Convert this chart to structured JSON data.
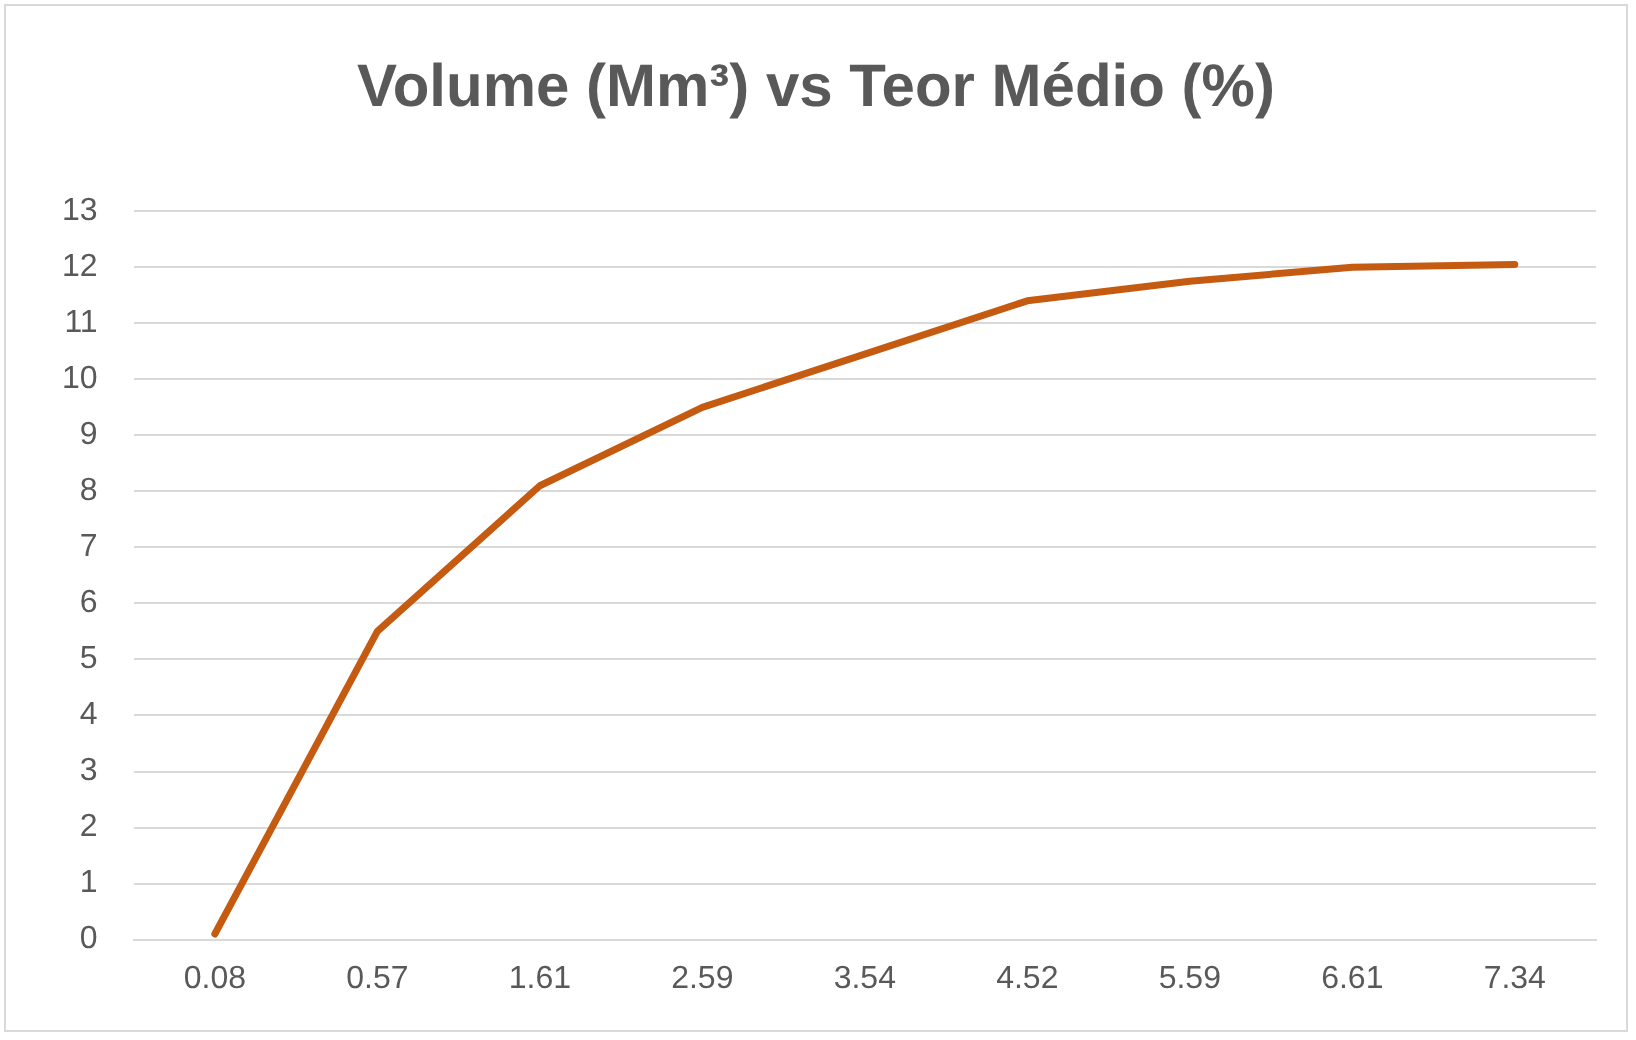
{
  "chart_data": {
    "type": "line",
    "title": "Volume (Mm³) vs Teor Médio (%)",
    "categories": [
      "0.08",
      "0.57",
      "1.61",
      "2.59",
      "3.54",
      "4.52",
      "5.59",
      "6.61",
      "7.34"
    ],
    "series": [
      {
        "color": "#c55a11",
        "values": [
          0.1,
          5.5,
          8.1,
          9.5,
          10.45,
          11.4,
          11.75,
          12.0,
          12.05
        ]
      }
    ],
    "ylim": [
      0,
      13
    ],
    "yticks": [
      0,
      1,
      2,
      3,
      4,
      5,
      6,
      7,
      8,
      9,
      10,
      11,
      12,
      13
    ],
    "grid": "y",
    "legend": false,
    "marker": "none",
    "line_style": "solid"
  }
}
